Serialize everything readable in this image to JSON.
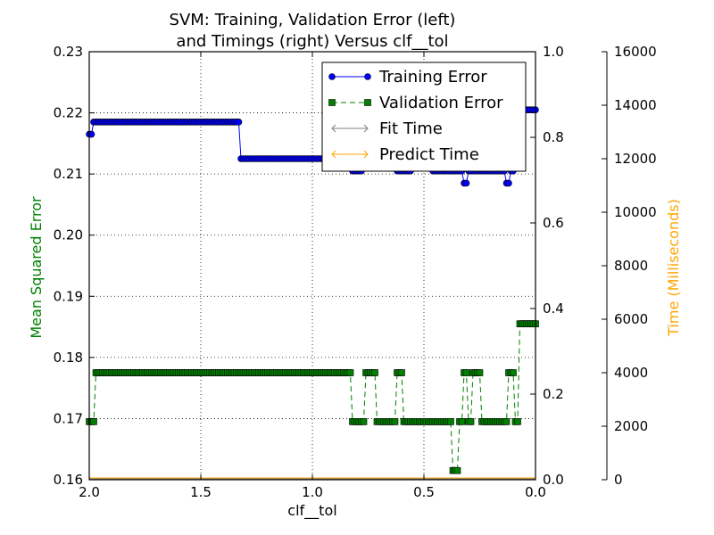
{
  "chart_data": {
    "type": "line",
    "title_line1": "SVM: Training, Validation Error (left)",
    "title_line2": "and Timings (right) Versus clf__tol",
    "xlabel": "clf__tol",
    "ylabel_left": "Mean Squared Error",
    "ylabel_right": "Time (Milliseconds)",
    "xlim": [
      2.0,
      0.0
    ],
    "ylim_left": [
      0.16,
      0.23
    ],
    "ylim_right": [
      0.0,
      1.0
    ],
    "ylim_far_right": [
      0,
      16000
    ],
    "x_ticks": [
      "2.0",
      "1.5",
      "1.0",
      "0.5",
      "0.0"
    ],
    "y_ticks_left": [
      "0.16",
      "0.17",
      "0.18",
      "0.19",
      "0.20",
      "0.21",
      "0.22",
      "0.23"
    ],
    "y_ticks_right": [
      "0.0",
      "0.2",
      "0.4",
      "0.6",
      "0.8",
      "1.0"
    ],
    "y_ticks_far_right": [
      "0",
      "2000",
      "4000",
      "6000",
      "8000",
      "10000",
      "12000",
      "14000",
      "16000"
    ],
    "grid": true,
    "legend_position": "top-right",
    "colors": {
      "training": "#0000ff",
      "validation": "#008000",
      "fit": "#808080",
      "predict": "#ffa500",
      "ylabel_left": "#008000",
      "ylabel_right": "#ffa500"
    },
    "series": [
      {
        "name": "Training Error",
        "segments": [
          [
            2.0,
            1.99,
            0.2165
          ],
          [
            1.98,
            1.33,
            0.2185
          ],
          [
            1.32,
            0.83,
            0.2125
          ],
          [
            0.82,
            0.78,
            0.2105
          ],
          [
            0.77,
            0.63,
            0.2125
          ],
          [
            0.62,
            0.56,
            0.2105
          ],
          [
            0.55,
            0.47,
            0.2125
          ],
          [
            0.46,
            0.33,
            0.2105
          ],
          [
            0.32,
            0.31,
            0.2085
          ],
          [
            0.3,
            0.14,
            0.2105
          ],
          [
            0.13,
            0.12,
            0.2085
          ],
          [
            0.11,
            0.1,
            0.2105
          ],
          [
            0.09,
            0.0,
            0.2205
          ]
        ]
      },
      {
        "name": "Validation Error",
        "segments": [
          [
            2.0,
            1.98,
            0.1695
          ],
          [
            1.97,
            0.83,
            0.1775
          ],
          [
            0.82,
            0.77,
            0.1695
          ],
          [
            0.76,
            0.72,
            0.1775
          ],
          [
            0.71,
            0.63,
            0.1695
          ],
          [
            0.62,
            0.6,
            0.1775
          ],
          [
            0.59,
            0.38,
            0.1695
          ],
          [
            0.37,
            0.35,
            0.1615
          ],
          [
            0.34,
            0.33,
            0.1695
          ],
          [
            0.32,
            0.31,
            0.1775
          ],
          [
            0.3,
            0.29,
            0.1695
          ],
          [
            0.28,
            0.25,
            0.1775
          ],
          [
            0.24,
            0.13,
            0.1695
          ],
          [
            0.12,
            0.1,
            0.1775
          ],
          [
            0.09,
            0.08,
            0.1695
          ],
          [
            0.07,
            0.0,
            0.1855
          ]
        ]
      },
      {
        "name": "Fit Time",
        "values": [
          0,
          0
        ]
      },
      {
        "name": "Predict Time",
        "values": [
          0,
          0
        ]
      }
    ]
  }
}
